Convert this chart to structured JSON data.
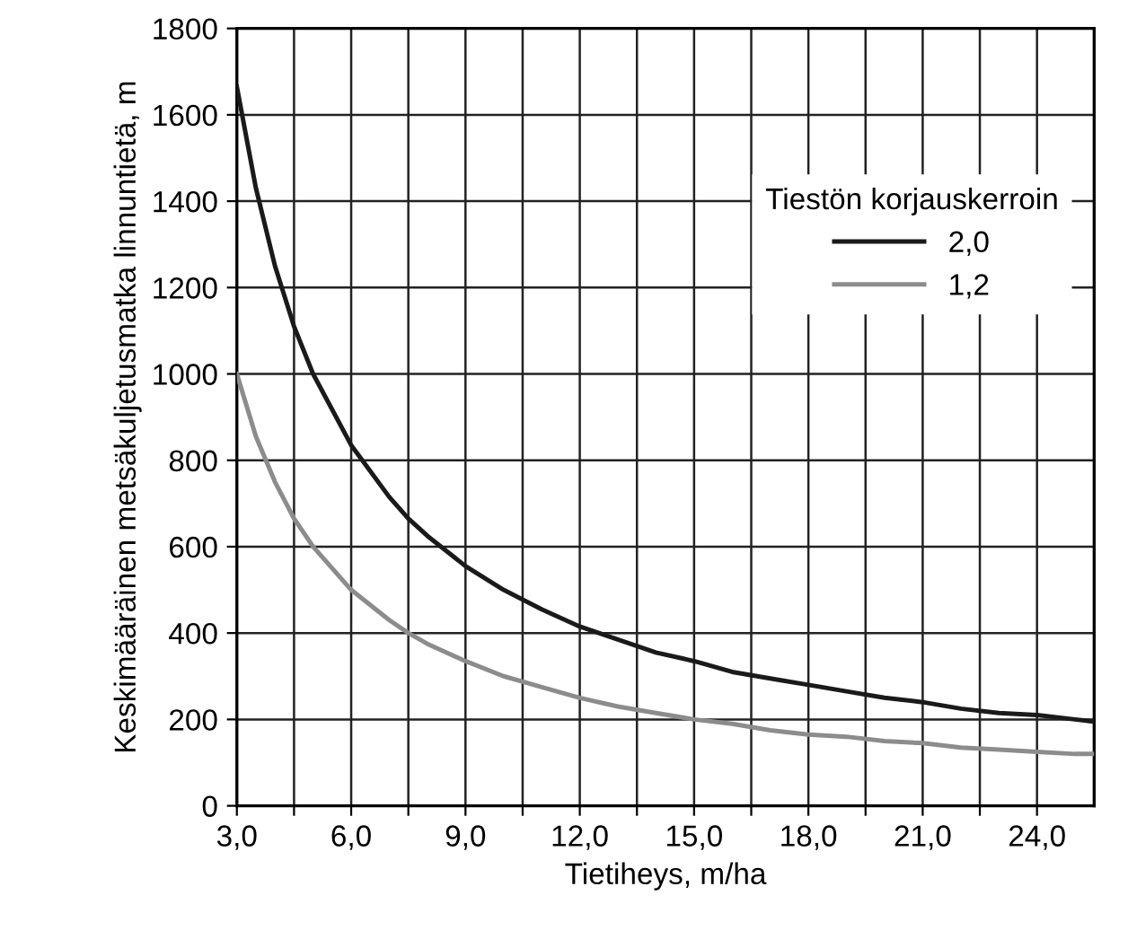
{
  "chart_data": {
    "type": "line",
    "xlabel": "Tietiheys, m/ha",
    "ylabel": "Keskimääräinen metsäkuljetusmatka linnuntietä, m",
    "legend_title": "Tiestön korjauskerroin",
    "x": [
      3,
      3.5,
      4,
      4.5,
      5,
      6,
      7,
      7.5,
      8,
      9,
      10,
      11,
      12,
      13,
      14,
      15,
      16,
      17,
      18,
      19,
      20,
      21,
      22,
      23,
      24,
      25,
      25.5
    ],
    "series": [
      {
        "name": "2,0",
        "color": "#1a1a1a",
        "values": [
          1665,
          1430,
          1250,
          1110,
          1000,
          835,
          715,
          665,
          625,
          555,
          500,
          455,
          415,
          385,
          355,
          335,
          310,
          295,
          280,
          265,
          250,
          240,
          225,
          215,
          210,
          200,
          195
        ]
      },
      {
        "name": "1,2",
        "color": "#8c8c8c",
        "values": [
          1000,
          855,
          750,
          665,
          600,
          500,
          430,
          400,
          375,
          335,
          300,
          275,
          250,
          230,
          215,
          200,
          190,
          175,
          165,
          160,
          150,
          145,
          135,
          130,
          125,
          120,
          120
        ]
      }
    ],
    "xlim": [
      3,
      25.5
    ],
    "xticks": [
      {
        "value": 3,
        "label": "3,0"
      },
      {
        "value": 4.5,
        "label": null
      },
      {
        "value": 6,
        "label": "6,0"
      },
      {
        "value": 7.5,
        "label": null
      },
      {
        "value": 9,
        "label": "9,0"
      },
      {
        "value": 10.5,
        "label": null
      },
      {
        "value": 12,
        "label": "12,0"
      },
      {
        "value": 13.5,
        "label": null
      },
      {
        "value": 15,
        "label": "15,0"
      },
      {
        "value": 16.5,
        "label": null
      },
      {
        "value": 18,
        "label": "18,0"
      },
      {
        "value": 19.5,
        "label": null
      },
      {
        "value": 21,
        "label": "21,0"
      },
      {
        "value": 22.5,
        "label": null
      },
      {
        "value": 24,
        "label": "24,0"
      }
    ],
    "ylim": [
      0,
      1800
    ],
    "yticks": [
      0,
      200,
      400,
      600,
      800,
      1000,
      1200,
      1400,
      1600,
      1800
    ],
    "grid": true,
    "legend": "top right",
    "marker": "none",
    "line_style": "solid"
  }
}
